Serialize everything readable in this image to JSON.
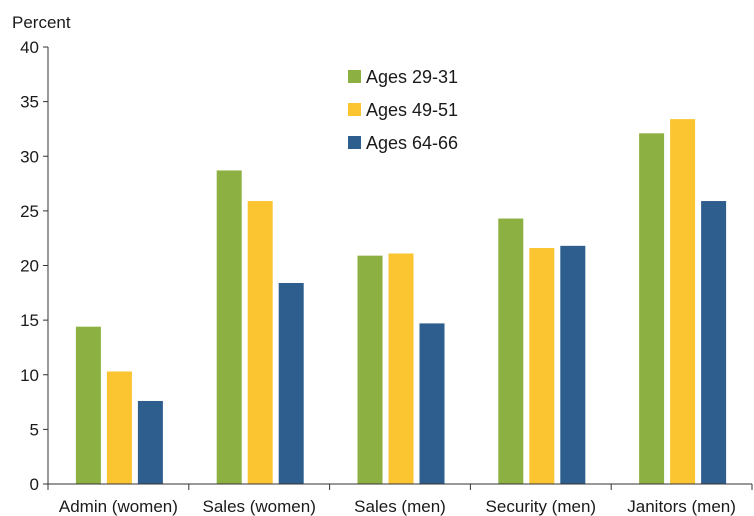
{
  "chart_data": {
    "type": "bar",
    "title": "",
    "xlabel": "",
    "ylabel": "Percent",
    "ylim": [
      0,
      40
    ],
    "yticks": [
      0,
      5,
      10,
      15,
      20,
      25,
      30,
      35,
      40
    ],
    "grid": false,
    "legend_position": "top-center",
    "categories": [
      "Admin (women)",
      "Sales (women)",
      "Sales (men)",
      "Security (men)",
      "Janitors (men)"
    ],
    "series": [
      {
        "name": "Ages 29-31",
        "color": "#8cb042",
        "values": [
          14.4,
          28.7,
          20.9,
          24.3,
          32.1
        ]
      },
      {
        "name": "Ages 49-51",
        "color": "#fbc531",
        "values": [
          10.3,
          25.9,
          21.1,
          21.6,
          33.4
        ]
      },
      {
        "name": "Ages 64-66",
        "color": "#2e5e8e",
        "values": [
          7.6,
          18.4,
          14.7,
          21.8,
          25.9
        ]
      }
    ]
  }
}
